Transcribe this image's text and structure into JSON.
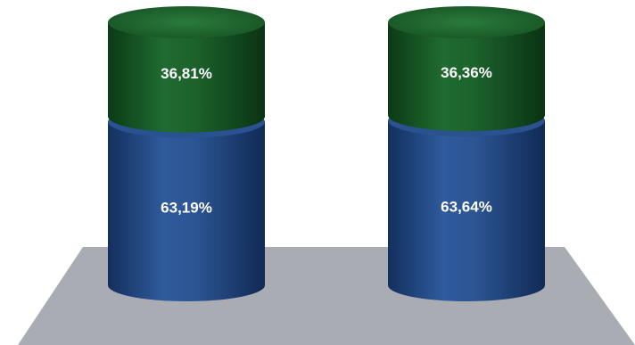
{
  "chart_data": {
    "type": "bar",
    "stacked": true,
    "style": "3d-cylinder",
    "categories": [
      "",
      ""
    ],
    "series": [
      {
        "values": [
          63.19,
          63.64
        ],
        "labels": [
          "63,19%",
          "63,64%"
        ],
        "color": "#2b4f8e"
      },
      {
        "values": [
          36.81,
          36.36
        ],
        "labels": [
          "36,81%",
          "36,36%"
        ],
        "color": "#1d5a2a"
      }
    ],
    "ylim": [
      0,
      100
    ],
    "grid": false,
    "floor_color": "#a9adb3"
  }
}
